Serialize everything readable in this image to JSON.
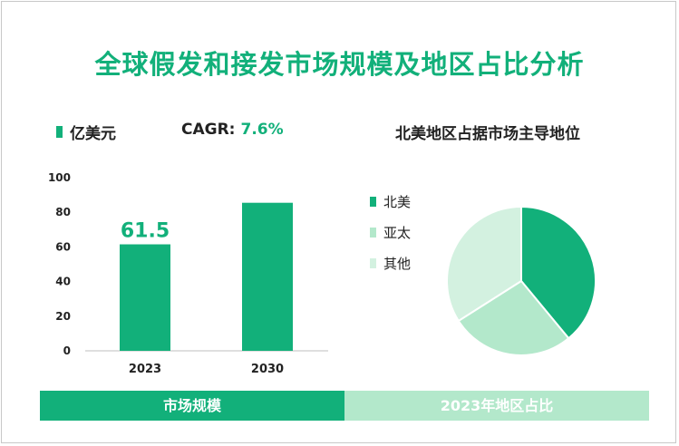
{
  "header": {
    "title": "全球假发和接发市场规模及地区占比分析"
  },
  "bar_panel": {
    "unit_label": "亿美元",
    "cagr_label": "CAGR:",
    "cagr_value": "7.6%"
  },
  "pie_panel": {
    "title": "北美地区占据市场主导地位"
  },
  "bands": {
    "left": "市场规模",
    "right": "2023年地区占比"
  },
  "colors": {
    "green": "#12b07a",
    "mid": "#b3e8cb",
    "light": "#d3f1e0",
    "text": "#222222"
  },
  "chart_data": [
    {
      "type": "bar",
      "categories": [
        "2023",
        "2030"
      ],
      "values": [
        61.5,
        85.5
      ],
      "data_labels": [
        "61.5",
        ""
      ],
      "ylim": [
        0,
        100
      ],
      "yticks": [
        0,
        20,
        40,
        60,
        80,
        100
      ],
      "unit": "亿美元",
      "grid": false
    },
    {
      "type": "pie",
      "labels": [
        "北美",
        "亚太",
        "其他"
      ],
      "values": [
        39,
        27,
        34
      ],
      "colors": [
        "#12b07a",
        "#b3e8cb",
        "#d3f1e0"
      ],
      "legend": "left"
    }
  ]
}
